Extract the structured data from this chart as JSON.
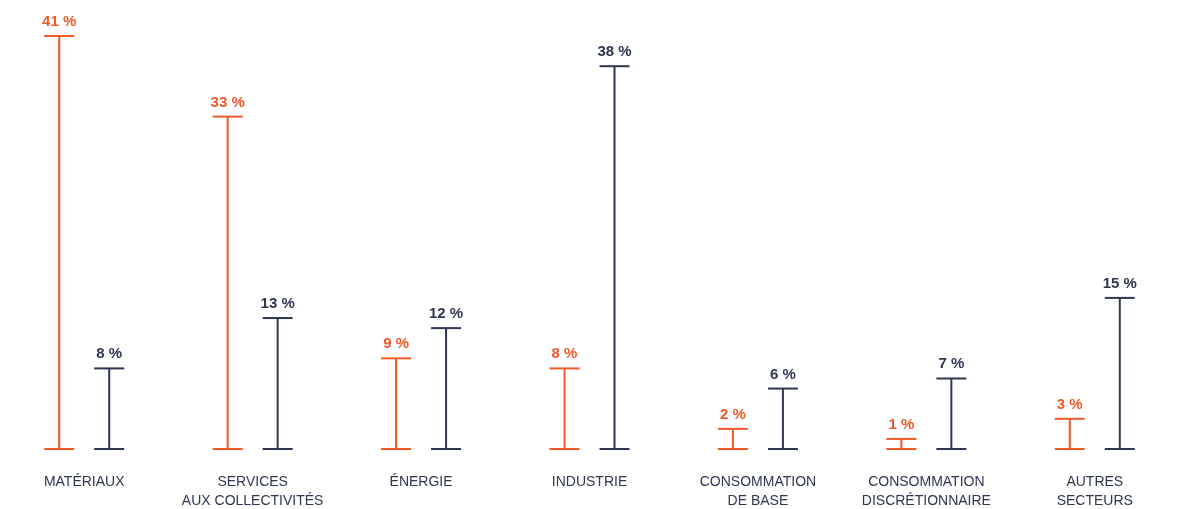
{
  "chart_data": {
    "type": "bar",
    "categories": [
      "MATÉRIAUX",
      "SERVICES\nAUX COLLECTIVITÉS",
      "ÉNERGIE",
      "INDUSTRIE",
      "CONSOMMATION\nDE BASE",
      "CONSOMMATION\nDISCRÉTIONNAIRE",
      "AUTRES\nSECTEURS"
    ],
    "series": [
      {
        "color": "#f05a28",
        "values": [
          41,
          33,
          9,
          8,
          2,
          1,
          3
        ],
        "value_labels": [
          "41 %",
          "33 %",
          "9 %",
          "8 %",
          "2 %",
          "1 %",
          "3 %"
        ]
      },
      {
        "color": "#2f3750",
        "values": [
          8,
          13,
          12,
          38,
          6,
          7,
          15
        ],
        "value_labels": [
          "8 %",
          "13 %",
          "12 %",
          "38 %",
          "6 %",
          "7 %",
          "15 %"
        ]
      }
    ]
  }
}
